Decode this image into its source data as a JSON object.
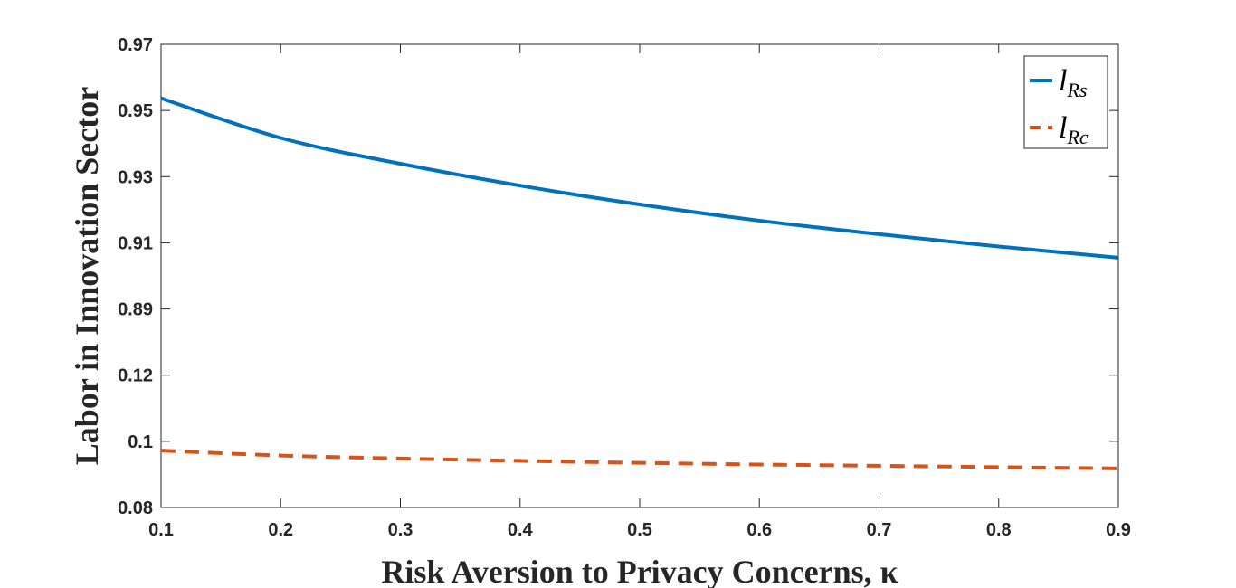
{
  "chart_data": {
    "type": "line",
    "xlabel": "Risk Aversion to Privacy Concerns, κ",
    "ylabel": "Labor in Innovation Sector",
    "xlim": [
      0.1,
      0.9
    ],
    "x_ticks": [
      "0.1",
      "0.2",
      "0.3",
      "0.4",
      "0.5",
      "0.6",
      "0.7",
      "0.8",
      "0.9"
    ],
    "y_ticks": [
      "0.08",
      "0.1",
      "0.12",
      "0.89",
      "0.91",
      "0.93",
      "0.95",
      "0.97"
    ],
    "broken_axis": true,
    "grid": false,
    "legend_position": "top-right",
    "series": [
      {
        "name": "l_Rs",
        "legend_main": "l",
        "legend_sub": "Rs",
        "color": "#0072BD",
        "line_style": "solid",
        "x": [
          0.1,
          0.2,
          0.3,
          0.4,
          0.5,
          0.6,
          0.7,
          0.8,
          0.9
        ],
        "y": [
          0.9537,
          0.9417,
          0.9339,
          0.9273,
          0.9216,
          0.9167,
          0.9126,
          0.9089,
          0.9055
        ]
      },
      {
        "name": "l_Rc",
        "legend_main": "l",
        "legend_sub": "Rc",
        "color": "#D95319",
        "line_style": "dashed",
        "x": [
          0.1,
          0.2,
          0.3,
          0.4,
          0.5,
          0.6,
          0.7,
          0.8,
          0.9
        ],
        "y": [
          0.0972,
          0.0957,
          0.0948,
          0.0941,
          0.0935,
          0.093,
          0.0926,
          0.0922,
          0.0918
        ]
      }
    ]
  }
}
